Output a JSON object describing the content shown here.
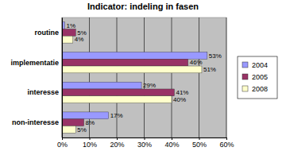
{
  "chart_data": {
    "type": "bar",
    "title": "Indicator: indeling in fasen",
    "orientation": "horizontal",
    "categories": [
      "routine",
      "implementatie",
      "interesse",
      "non-interesse"
    ],
    "series": [
      {
        "name": "2004",
        "color": "#9999ff",
        "values": [
          1,
          53,
          29,
          17
        ],
        "value_labels": [
          "1%",
          "53%",
          "29%",
          "17%"
        ]
      },
      {
        "name": "2005",
        "color": "#993366",
        "values": [
          5,
          46,
          41,
          8
        ],
        "value_labels": [
          "5%",
          "46%",
          "41%",
          "8%"
        ]
      },
      {
        "name": "2008",
        "color": "#ffffcc",
        "values": [
          4,
          51,
          40,
          5
        ],
        "value_labels": [
          "4%",
          "51%",
          "40%",
          "5%"
        ]
      }
    ],
    "xlim": [
      0,
      60
    ],
    "xticks": [
      {
        "value": 0,
        "label": "0%"
      },
      {
        "value": 10,
        "label": "10%"
      },
      {
        "value": 20,
        "label": "20%"
      },
      {
        "value": 30,
        "label": "30%"
      },
      {
        "value": 40,
        "label": "40%"
      },
      {
        "value": 50,
        "label": "50%"
      },
      {
        "value": 60,
        "label": "60%"
      }
    ],
    "grid": true,
    "legend": "right",
    "data_labels": true
  }
}
